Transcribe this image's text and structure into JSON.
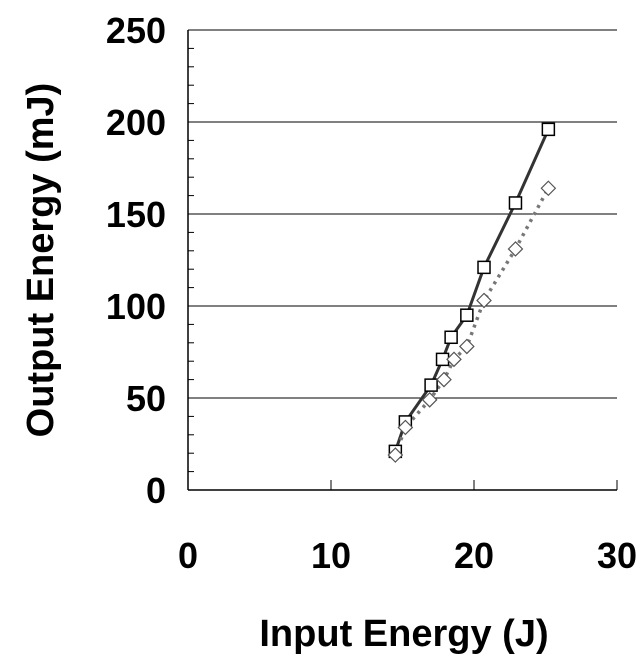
{
  "chart_data": {
    "type": "scatter",
    "title": "",
    "xlabel": "Input Energy (J)",
    "ylabel": "Output Energy (mJ)",
    "xlim": [
      0,
      30
    ],
    "ylim": [
      0,
      250
    ],
    "x_ticks": [
      "0",
      "10",
      "20",
      "30"
    ],
    "y_ticks": [
      "0",
      "50",
      "100",
      "150",
      "200",
      "250"
    ],
    "grid": "horizontal major gridlines",
    "legend": "none",
    "series": [
      {
        "marker": "square",
        "line": "solid",
        "color": "#333333",
        "points": [
          [
            14.5,
            21
          ],
          [
            15.2,
            37
          ],
          [
            17.0,
            57
          ],
          [
            17.8,
            71
          ],
          [
            18.4,
            83
          ],
          [
            19.5,
            95
          ],
          [
            20.7,
            121
          ],
          [
            22.9,
            156
          ],
          [
            25.2,
            196
          ]
        ]
      },
      {
        "marker": "diamond",
        "line": "dotted",
        "color": "#777777",
        "points": [
          [
            14.5,
            19
          ],
          [
            15.2,
            34
          ],
          [
            16.9,
            49
          ],
          [
            17.9,
            60
          ],
          [
            18.6,
            71
          ],
          [
            19.5,
            78
          ],
          [
            20.7,
            103
          ],
          [
            22.9,
            131
          ],
          [
            25.2,
            164
          ]
        ]
      }
    ]
  }
}
